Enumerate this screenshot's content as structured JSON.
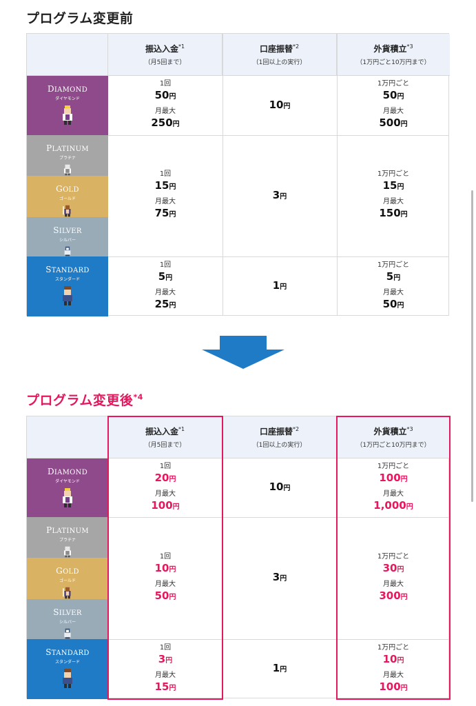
{
  "before": {
    "title": "プログラム変更前"
  },
  "after": {
    "title": "プログラム変更後",
    "title_note": "*4"
  },
  "headers": {
    "transfer_in": {
      "label": "振込入金",
      "note": "*1",
      "sub": "（月5回まで）"
    },
    "account_transfer": {
      "label": "口座振替",
      "note": "*2",
      "sub": "（1回以上の実行）"
    },
    "fx_saving": {
      "label": "外貨積立",
      "note": "*3",
      "sub": "（1万円ごと10万円まで）"
    }
  },
  "ranks": {
    "diamond": {
      "en_cap": "D",
      "en_rest": "IAMOND",
      "jp": "ダイヤモンド"
    },
    "platinum": {
      "en_cap": "P",
      "en_rest": "LATINUM",
      "jp": "プラチナ"
    },
    "gold": {
      "en_cap": "G",
      "en_rest": "OLD",
      "jp": "ゴールド"
    },
    "silver": {
      "en_cap": "S",
      "en_rest": "ILVER",
      "jp": "シルバー"
    },
    "standard": {
      "en_cap": "S",
      "en_rest": "TANDARD",
      "jp": "スタンダード"
    }
  },
  "labels": {
    "once": "1回",
    "monthly_max": "月最大",
    "per_10k": "1万円ごと",
    "yen": "円"
  },
  "before_values": {
    "diamond": {
      "in_once": "50",
      "in_max": "250",
      "transfer": "10",
      "fx_once": "50",
      "fx_max": "500"
    },
    "mid": {
      "in_once": "15",
      "in_max": "75",
      "transfer": "3",
      "fx_once": "15",
      "fx_max": "150"
    },
    "standard": {
      "in_once": "5",
      "in_max": "25",
      "transfer": "1",
      "fx_once": "5",
      "fx_max": "50"
    }
  },
  "after_values": {
    "diamond": {
      "in_once": "20",
      "in_max": "100",
      "transfer": "10",
      "fx_once": "100",
      "fx_max": "1,000"
    },
    "mid": {
      "in_once": "10",
      "in_max": "50",
      "transfer": "3",
      "fx_once": "30",
      "fx_max": "300"
    },
    "standard": {
      "in_once": "3",
      "in_max": "15",
      "transfer": "1",
      "fx_once": "10",
      "fx_max": "100"
    }
  },
  "colors": {
    "accent_red": "#e6175c",
    "arrow_blue": "#1f7bc6",
    "header_bg": "#edf2fa",
    "diamond": "#8f4a8b",
    "platinum": "#a6a6a6",
    "gold": "#dab263",
    "silver": "#9aabb8",
    "standard": "#1f7bc6"
  }
}
